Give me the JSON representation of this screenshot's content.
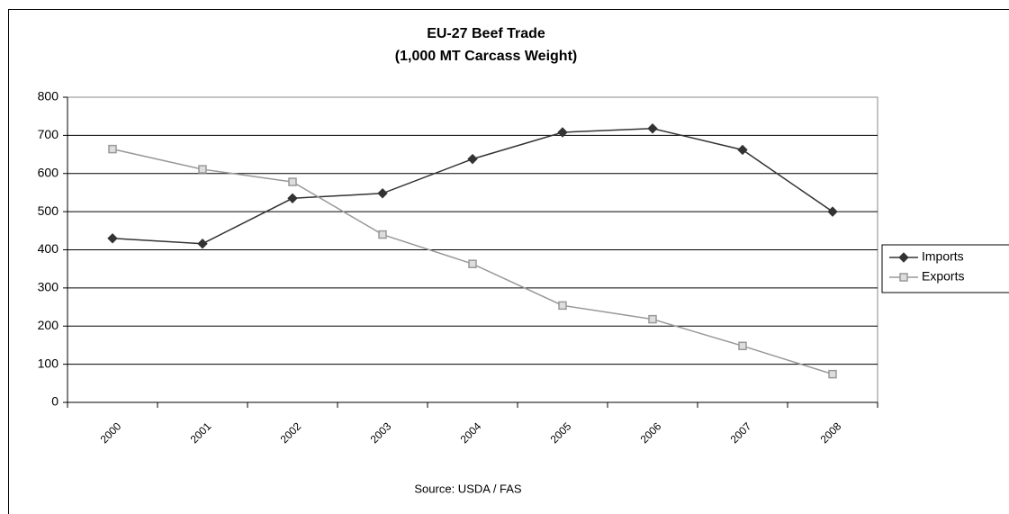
{
  "chart_data": {
    "type": "line",
    "title": "EU-27 Beef Trade",
    "subtitle": "(1,000 MT Carcass Weight)",
    "source": "Source: USDA / FAS",
    "categories": [
      "2000",
      "2001",
      "2002",
      "2003",
      "2004",
      "2005",
      "2006",
      "2007",
      "2008"
    ],
    "series": [
      {
        "name": "Imports",
        "color": "#333333",
        "marker": "diamond",
        "values": [
          430,
          416,
          535,
          548,
          638,
          708,
          718,
          662,
          500
        ]
      },
      {
        "name": "Exports",
        "color": "#999999",
        "marker": "square",
        "values": [
          664,
          611,
          578,
          440,
          363,
          254,
          218,
          148,
          74
        ]
      }
    ],
    "ylim": [
      0,
      800
    ],
    "yticks": [
      0,
      100,
      200,
      300,
      400,
      500,
      600,
      700,
      800
    ],
    "grid": true,
    "legend": "right"
  }
}
